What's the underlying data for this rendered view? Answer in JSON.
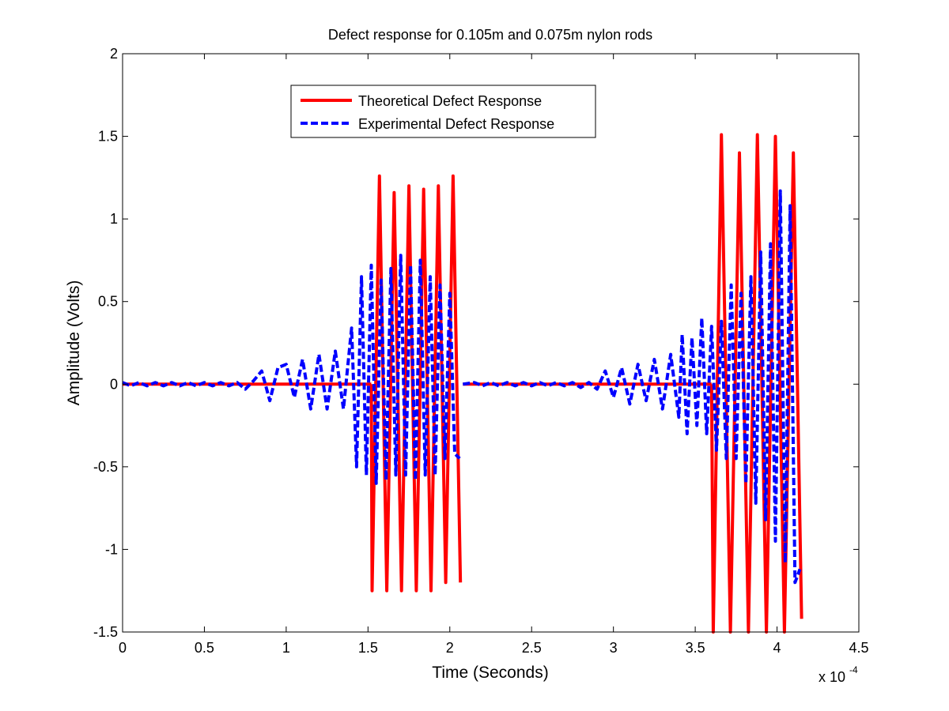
{
  "chart_data": {
    "type": "line",
    "title": "Defect response for 0.105m and 0.075m nylon rods",
    "xlabel": "Time (Seconds)",
    "ylabel": "Amplitude (Volts)",
    "x_multiplier_label": "x 10",
    "x_multiplier_exponent": "-4",
    "xlim": [
      0,
      4.5
    ],
    "ylim": [
      -1.5,
      2
    ],
    "x_ticks": [
      0,
      0.5,
      1,
      1.5,
      2,
      2.5,
      3,
      3.5,
      4,
      4.5
    ],
    "x_tick_labels": [
      "0",
      "0.5",
      "1",
      "1.5",
      "2",
      "2.5",
      "3",
      "3.5",
      "4",
      "4.5"
    ],
    "y_ticks": [
      -1.5,
      -1,
      -0.5,
      0,
      0.5,
      1,
      1.5,
      2
    ],
    "y_tick_labels": [
      "-1.5",
      "-1",
      "-0.5",
      "0",
      "0.5",
      "1",
      "1.5",
      "2"
    ],
    "grid": false,
    "legend_position": "top-left",
    "series": [
      {
        "name": "Theoretical Defect Response",
        "color": "#ff0000",
        "style": "solid",
        "segments": [
          {
            "x": [
              0,
              1.52
            ],
            "y": [
              0,
              0
            ]
          },
          {
            "x": [
              1.52,
              1.525,
              1.57,
              1.615,
              1.66,
              1.705,
              1.75,
              1.795,
              1.84,
              1.885,
              1.93,
              1.975,
              2.02,
              2.065
            ],
            "y": [
              0,
              -1.25,
              1.26,
              -1.25,
              1.16,
              -1.25,
              1.2,
              -1.25,
              1.18,
              -1.25,
              1.2,
              -1.2,
              1.26,
              -1.2
            ]
          },
          {
            "x": [
              2.08,
              3.6
            ],
            "y": [
              0,
              0
            ]
          },
          {
            "x": [
              3.6,
              3.61,
              3.66,
              3.715,
              3.77,
              3.825,
              3.88,
              3.935,
              3.99,
              4.045,
              4.1,
              4.15
            ],
            "y": [
              0,
              -1.5,
              1.51,
              -1.5,
              1.4,
              -1.5,
              1.51,
              -1.5,
              1.5,
              -1.5,
              1.4,
              -1.42
            ]
          }
        ]
      },
      {
        "name": "Experimental Defect Response",
        "color": "#0000ff",
        "style": "dashed",
        "segments": [
          {
            "x": [
              0,
              0.05,
              0.1,
              0.15,
              0.2,
              0.25,
              0.3,
              0.35,
              0.4,
              0.45,
              0.5,
              0.55,
              0.6,
              0.65,
              0.7,
              0.75,
              0.8,
              0.85,
              0.9,
              0.95,
              1.0,
              1.05,
              1.1,
              1.15,
              1.2,
              1.25,
              1.3,
              1.35,
              1.4,
              1.43,
              1.46,
              1.49,
              1.52,
              1.55,
              1.58,
              1.61,
              1.64,
              1.67,
              1.7,
              1.73,
              1.76,
              1.79,
              1.82,
              1.85,
              1.88,
              1.91,
              1.94,
              1.97,
              2.0,
              2.03,
              2.06
            ],
            "y": [
              0.01,
              -0.01,
              0.01,
              -0.01,
              0.01,
              -0.01,
              0.01,
              -0.01,
              0.01,
              -0.01,
              0.01,
              -0.01,
              0.01,
              -0.01,
              0.01,
              -0.03,
              0.02,
              0.08,
              -0.1,
              0.1,
              0.12,
              -0.08,
              0.15,
              -0.15,
              0.18,
              -0.15,
              0.2,
              -0.15,
              0.34,
              -0.5,
              0.65,
              -0.55,
              0.72,
              -0.6,
              0.63,
              -0.58,
              0.7,
              -0.55,
              0.78,
              -0.55,
              0.72,
              -0.58,
              0.75,
              -0.55,
              0.65,
              -0.55,
              0.6,
              -0.45,
              0.55,
              -0.42,
              -0.45
            ]
          },
          {
            "x": [
              2.08,
              2.15,
              2.2,
              2.25,
              2.3,
              2.35,
              2.4,
              2.45,
              2.5,
              2.55,
              2.6,
              2.65,
              2.7,
              2.75,
              2.8,
              2.85,
              2.9,
              2.95,
              3.0,
              3.05,
              3.1,
              3.15,
              3.2,
              3.25,
              3.3,
              3.35,
              3.4,
              3.42,
              3.45,
              3.48,
              3.51,
              3.54,
              3.57,
              3.6,
              3.63,
              3.66,
              3.69,
              3.72,
              3.75,
              3.78,
              3.81,
              3.84,
              3.87,
              3.9,
              3.93,
              3.96,
              3.99,
              4.02,
              4.05,
              4.08,
              4.11,
              4.14
            ],
            "y": [
              0,
              0.01,
              -0.01,
              0.01,
              -0.01,
              0.01,
              -0.01,
              0.01,
              -0.01,
              0.01,
              -0.01,
              0.01,
              -0.01,
              0.01,
              -0.02,
              0.01,
              -0.03,
              0.08,
              -0.08,
              0.1,
              -0.12,
              0.12,
              -0.1,
              0.15,
              -0.15,
              0.18,
              -0.2,
              0.3,
              -0.3,
              0.28,
              -0.25,
              0.4,
              -0.3,
              0.35,
              -0.4,
              0.38,
              -0.45,
              0.6,
              -0.45,
              0.55,
              -0.6,
              0.65,
              -0.72,
              0.8,
              -0.82,
              0.85,
              -0.95,
              1.17,
              -1.08,
              1.08,
              -1.2,
              -1.12
            ]
          }
        ]
      }
    ]
  }
}
